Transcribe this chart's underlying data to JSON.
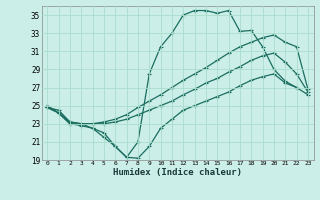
{
  "xlabel": "Humidex (Indice chaleur)",
  "bg_color": "#cceee8",
  "grid_color": "#aaddcc",
  "line_color": "#1a6e60",
  "xmin": -0.5,
  "xmax": 23.5,
  "ymin": 19,
  "ymax": 36,
  "yticks": [
    19,
    21,
    23,
    25,
    27,
    29,
    31,
    33,
    35
  ],
  "xticks": [
    0,
    1,
    2,
    3,
    4,
    5,
    6,
    7,
    8,
    9,
    10,
    11,
    12,
    13,
    14,
    15,
    16,
    17,
    18,
    19,
    20,
    21,
    22,
    23
  ],
  "x_max": [
    0,
    1,
    2,
    3,
    4,
    5,
    6,
    7,
    8,
    9,
    10,
    11,
    12,
    13,
    14,
    15,
    16,
    17,
    18,
    19,
    20,
    21,
    22
  ],
  "y_max": [
    25.0,
    24.2,
    23.0,
    22.8,
    22.5,
    21.5,
    20.5,
    19.3,
    21.0,
    28.5,
    31.5,
    33.0,
    35.0,
    35.5,
    35.5,
    35.2,
    35.5,
    33.2,
    33.3,
    31.5,
    29.0,
    27.7,
    27.0
  ],
  "x_upper": [
    0,
    1,
    2,
    3,
    4,
    5,
    6,
    7,
    8,
    9,
    10,
    11,
    12,
    13,
    14,
    15,
    16,
    17,
    18,
    19,
    20,
    21,
    22,
    23
  ],
  "y_upper": [
    24.8,
    24.5,
    23.2,
    23.0,
    23.0,
    23.2,
    23.5,
    24.0,
    24.8,
    25.5,
    26.2,
    27.0,
    27.8,
    28.5,
    29.2,
    30.0,
    30.8,
    31.5,
    32.0,
    32.5,
    32.8,
    32.0,
    31.5,
    26.8
  ],
  "x_lower": [
    0,
    1,
    2,
    3,
    4,
    5,
    6,
    7,
    8,
    9,
    10,
    11,
    12,
    13,
    14,
    15,
    16,
    17,
    18,
    19,
    20,
    21,
    22,
    23
  ],
  "y_lower": [
    24.8,
    24.2,
    23.2,
    23.0,
    23.0,
    23.0,
    23.2,
    23.5,
    24.0,
    24.5,
    25.0,
    25.5,
    26.2,
    26.8,
    27.5,
    28.0,
    28.7,
    29.3,
    30.0,
    30.5,
    30.8,
    29.8,
    28.5,
    26.5
  ],
  "x_min": [
    0,
    1,
    2,
    3,
    4,
    5,
    6,
    7,
    8,
    9,
    10,
    11,
    12,
    13,
    14,
    15,
    16,
    17,
    18,
    19,
    20,
    21,
    22,
    23
  ],
  "y_min": [
    24.8,
    24.2,
    23.0,
    23.0,
    22.5,
    22.0,
    20.5,
    19.3,
    19.2,
    20.5,
    22.5,
    23.5,
    24.5,
    25.0,
    25.5,
    26.0,
    26.5,
    27.2,
    27.8,
    28.2,
    28.5,
    27.5,
    27.0,
    26.2
  ]
}
